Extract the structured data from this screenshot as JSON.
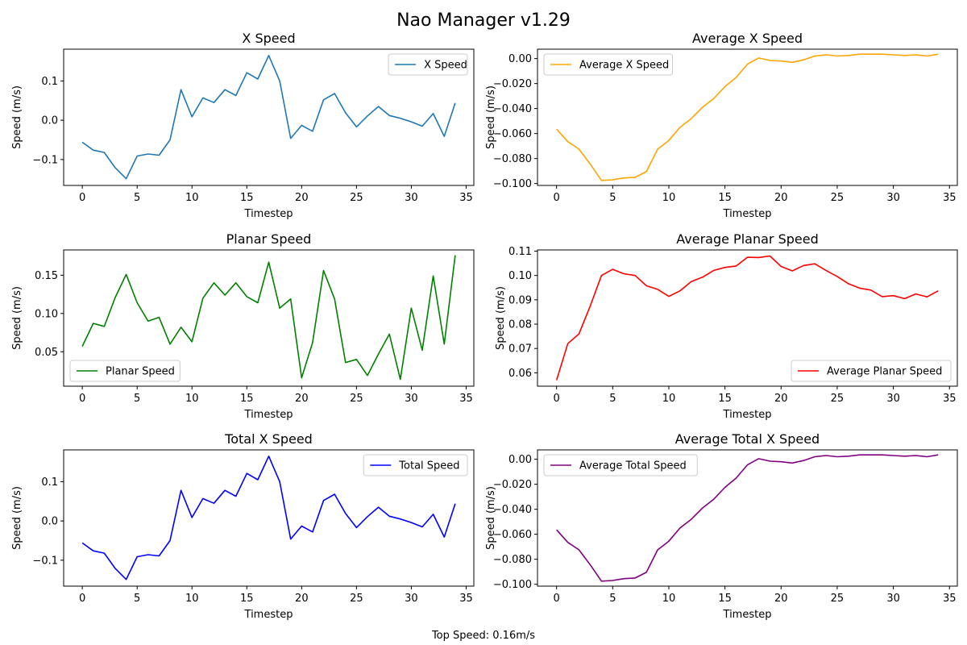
{
  "figure": {
    "title": "Nao Manager v1.29",
    "footer": "Top Speed: 0.16m/s"
  },
  "chart_data": [
    {
      "type": "line",
      "title": "X Speed",
      "xlabel": "Timestep",
      "ylabel": "Speed (m/s)",
      "xlim": [
        -1.7,
        35.7
      ],
      "ylim": [
        -0.166,
        0.181
      ],
      "xticks": [
        0,
        5,
        10,
        15,
        20,
        25,
        30,
        35
      ],
      "yticks": [
        -0.1,
        0.0,
        0.1
      ],
      "ytick_labels": [
        "−0.1",
        "0.0",
        "0.1"
      ],
      "legend_loc": "top-right",
      "grid": false,
      "series": [
        {
          "name": "X Speed",
          "color": "#1f77b4",
          "x": [
            0,
            1,
            2,
            3,
            4,
            5,
            6,
            7,
            8,
            9,
            10,
            11,
            12,
            13,
            14,
            15,
            16,
            17,
            18,
            19,
            20,
            21,
            22,
            23,
            24,
            25,
            26,
            27,
            28,
            29,
            30,
            31,
            32,
            33,
            34
          ],
          "values": [
            -0.056,
            -0.076,
            -0.082,
            -0.121,
            -0.149,
            -0.091,
            -0.086,
            -0.089,
            -0.05,
            0.078,
            0.009,
            0.057,
            0.045,
            0.078,
            0.063,
            0.121,
            0.105,
            0.165,
            0.1,
            -0.046,
            -0.013,
            -0.028,
            0.052,
            0.068,
            0.019,
            -0.017,
            0.011,
            0.035,
            0.012,
            0.005,
            -0.004,
            -0.015,
            0.017,
            -0.041,
            0.044
          ]
        }
      ]
    },
    {
      "type": "line",
      "title": "Average X Speed",
      "xlabel": "Timestep",
      "ylabel": "Speed (m/s)",
      "xlim": [
        -1.7,
        35.7
      ],
      "ylim": [
        -0.1015,
        0.0075
      ],
      "xticks": [
        0,
        5,
        10,
        15,
        20,
        25,
        30,
        35
      ],
      "yticks": [
        -0.1,
        -0.08,
        -0.06,
        -0.04,
        -0.02,
        0.0
      ],
      "ytick_labels": [
        "−0.100",
        "−0.080",
        "−0.060",
        "−0.040",
        "−0.020",
        "0.00"
      ],
      "legend_loc": "top-left",
      "grid": false,
      "series": [
        {
          "name": "Average X Speed",
          "color": "#ffa500",
          "x": [
            0,
            1,
            2,
            3,
            4,
            5,
            6,
            7,
            8,
            9,
            10,
            11,
            12,
            13,
            14,
            15,
            16,
            17,
            18,
            19,
            20,
            21,
            22,
            23,
            24,
            25,
            26,
            27,
            28,
            29,
            30,
            31,
            32,
            33,
            34
          ],
          "values": [
            -0.0565,
            -0.0665,
            -0.0725,
            -0.0845,
            -0.0975,
            -0.097,
            -0.0955,
            -0.095,
            -0.0905,
            -0.0725,
            -0.0655,
            -0.055,
            -0.048,
            -0.039,
            -0.032,
            -0.0225,
            -0.015,
            -0.0045,
            0.0005,
            -0.0015,
            -0.002,
            -0.003,
            -0.001,
            0.002,
            0.003,
            0.002,
            0.0025,
            0.0035,
            0.0035,
            0.0035,
            0.003,
            0.0025,
            0.003,
            0.002,
            0.0035
          ]
        }
      ]
    },
    {
      "type": "line",
      "title": "Planar Speed",
      "xlabel": "Timestep",
      "ylabel": "Speed (m/s)",
      "xlim": [
        -1.7,
        35.7
      ],
      "ylim": [
        0.005,
        0.183
      ],
      "xticks": [
        0,
        5,
        10,
        15,
        20,
        25,
        30,
        35
      ],
      "yticks": [
        0.05,
        0.1,
        0.15
      ],
      "ytick_labels": [
        "0.05",
        "0.10",
        "0.15"
      ],
      "legend_loc": "bottom-left",
      "grid": false,
      "series": [
        {
          "name": "Planar Speed",
          "color": "#008000",
          "x": [
            0,
            1,
            2,
            3,
            4,
            5,
            6,
            7,
            8,
            9,
            10,
            11,
            12,
            13,
            14,
            15,
            16,
            17,
            18,
            19,
            20,
            21,
            22,
            23,
            24,
            25,
            26,
            27,
            28,
            29,
            30,
            31,
            32,
            33,
            34
          ],
          "values": [
            0.057,
            0.087,
            0.083,
            0.121,
            0.151,
            0.114,
            0.09,
            0.095,
            0.06,
            0.082,
            0.063,
            0.12,
            0.14,
            0.124,
            0.14,
            0.122,
            0.114,
            0.167,
            0.107,
            0.119,
            0.016,
            0.062,
            0.156,
            0.119,
            0.036,
            0.04,
            0.019,
            0.047,
            0.073,
            0.014,
            0.107,
            0.052,
            0.149,
            0.06,
            0.176
          ]
        }
      ]
    },
    {
      "type": "line",
      "title": "Average Planar Speed",
      "xlabel": "Timestep",
      "ylabel": "Speed (m/s)",
      "xlim": [
        -1.7,
        35.7
      ],
      "ylim": [
        0.0545,
        0.1105
      ],
      "xticks": [
        0,
        5,
        10,
        15,
        20,
        25,
        30,
        35
      ],
      "yticks": [
        0.06,
        0.07,
        0.08,
        0.09,
        0.1,
        0.11
      ],
      "ytick_labels": [
        "0.06",
        "0.07",
        "0.08",
        "0.09",
        "0.10",
        "0.11"
      ],
      "legend_loc": "bottom-right",
      "grid": false,
      "series": [
        {
          "name": "Average Planar Speed",
          "color": "#ff0000",
          "x": [
            0,
            1,
            2,
            3,
            4,
            5,
            6,
            7,
            8,
            9,
            10,
            11,
            12,
            13,
            14,
            15,
            16,
            17,
            18,
            19,
            20,
            21,
            22,
            23,
            24,
            25,
            26,
            27,
            28,
            29,
            30,
            31,
            32,
            33,
            34
          ],
          "values": [
            0.057,
            0.072,
            0.076,
            0.0875,
            0.1,
            0.1025,
            0.1007,
            0.1,
            0.0958,
            0.0943,
            0.0914,
            0.0937,
            0.0975,
            0.0993,
            0.1021,
            0.1033,
            0.1039,
            0.1075,
            0.1074,
            0.108,
            0.1037,
            0.1019,
            0.1041,
            0.1048,
            0.1021,
            0.0996,
            0.0966,
            0.0948,
            0.094,
            0.0913,
            0.0917,
            0.0905,
            0.0924,
            0.0912,
            0.0937
          ]
        }
      ]
    },
    {
      "type": "line",
      "title": "Total X Speed",
      "xlabel": "Timestep",
      "ylabel": "Speed (m/s)",
      "xlim": [
        -1.7,
        35.7
      ],
      "ylim": [
        -0.166,
        0.181
      ],
      "xticks": [
        0,
        5,
        10,
        15,
        20,
        25,
        30,
        35
      ],
      "yticks": [
        -0.1,
        0.0,
        0.1
      ],
      "ytick_labels": [
        "−0.1",
        "0.0",
        "0.1"
      ],
      "legend_loc": "top-right",
      "grid": false,
      "series": [
        {
          "name": "Total Speed",
          "color": "#0000ff",
          "x": [
            0,
            1,
            2,
            3,
            4,
            5,
            6,
            7,
            8,
            9,
            10,
            11,
            12,
            13,
            14,
            15,
            16,
            17,
            18,
            19,
            20,
            21,
            22,
            23,
            24,
            25,
            26,
            27,
            28,
            29,
            30,
            31,
            32,
            33,
            34
          ],
          "values": [
            -0.056,
            -0.076,
            -0.082,
            -0.121,
            -0.149,
            -0.091,
            -0.086,
            -0.089,
            -0.05,
            0.078,
            0.009,
            0.057,
            0.045,
            0.078,
            0.063,
            0.121,
            0.105,
            0.165,
            0.1,
            -0.046,
            -0.013,
            -0.028,
            0.052,
            0.068,
            0.019,
            -0.017,
            0.011,
            0.035,
            0.012,
            0.005,
            -0.004,
            -0.015,
            0.017,
            -0.041,
            0.044
          ]
        }
      ]
    },
    {
      "type": "line",
      "title": "Average Total X Speed",
      "xlabel": "Timestep",
      "ylabel": "Speed (m/s)",
      "xlim": [
        -1.7,
        35.7
      ],
      "ylim": [
        -0.1015,
        0.0075
      ],
      "xticks": [
        0,
        5,
        10,
        15,
        20,
        25,
        30,
        35
      ],
      "yticks": [
        -0.1,
        -0.08,
        -0.06,
        -0.04,
        -0.02,
        0.0
      ],
      "ytick_labels": [
        "−0.100",
        "−0.080",
        "−0.060",
        "−0.040",
        "−0.020",
        "0.00"
      ],
      "legend_loc": "top-left",
      "grid": false,
      "series": [
        {
          "name": "Average Total Speed",
          "color": "#800080",
          "x": [
            0,
            1,
            2,
            3,
            4,
            5,
            6,
            7,
            8,
            9,
            10,
            11,
            12,
            13,
            14,
            15,
            16,
            17,
            18,
            19,
            20,
            21,
            22,
            23,
            24,
            25,
            26,
            27,
            28,
            29,
            30,
            31,
            32,
            33,
            34
          ],
          "values": [
            -0.0565,
            -0.0665,
            -0.0725,
            -0.0845,
            -0.0975,
            -0.097,
            -0.0955,
            -0.095,
            -0.0905,
            -0.0725,
            -0.0655,
            -0.055,
            -0.048,
            -0.039,
            -0.032,
            -0.0225,
            -0.015,
            -0.0045,
            0.0005,
            -0.0015,
            -0.002,
            -0.003,
            -0.001,
            0.002,
            0.003,
            0.002,
            0.0025,
            0.0035,
            0.0035,
            0.0035,
            0.003,
            0.0025,
            0.003,
            0.002,
            0.0035
          ]
        }
      ]
    }
  ]
}
